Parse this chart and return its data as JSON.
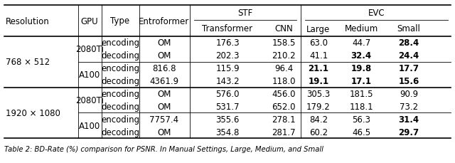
{
  "rows": [
    {
      "type": "encoding",
      "entroformer": "OM",
      "stf_t": "176.3",
      "stf_c": "158.5",
      "large": "63.0",
      "medium": "44.7",
      "small": "28.4",
      "bold": [
        "small"
      ]
    },
    {
      "type": "decoding",
      "entroformer": "OM",
      "stf_t": "202.3",
      "stf_c": "210.2",
      "large": "41.1",
      "medium": "32.4",
      "small": "24.4",
      "bold": [
        "medium",
        "small"
      ]
    },
    {
      "type": "encoding",
      "entroformer": "816.8",
      "stf_t": "115.9",
      "stf_c": "96.4",
      "large": "21.1",
      "medium": "19.8",
      "small": "17.7",
      "bold": [
        "large",
        "medium",
        "small"
      ]
    },
    {
      "type": "decoding",
      "entroformer": "4361.9",
      "stf_t": "143.2",
      "stf_c": "118.0",
      "large": "19.1",
      "medium": "17.1",
      "small": "15.6",
      "bold": [
        "large",
        "medium",
        "small"
      ]
    },
    {
      "type": "encoding",
      "entroformer": "OM",
      "stf_t": "576.0",
      "stf_c": "456.0",
      "large": "305.3",
      "medium": "181.5",
      "small": "90.9",
      "bold": []
    },
    {
      "type": "decoding",
      "entroformer": "OM",
      "stf_t": "531.7",
      "stf_c": "652.0",
      "large": "179.2",
      "medium": "118.1",
      "small": "73.2",
      "bold": []
    },
    {
      "type": "encoding",
      "entroformer": "7757.4",
      "stf_t": "355.6",
      "stf_c": "278.1",
      "large": "84.2",
      "medium": "56.3",
      "small": "31.4",
      "bold": [
        "small"
      ]
    },
    {
      "type": "decoding",
      "entroformer": "OM",
      "stf_t": "354.8",
      "stf_c": "281.7",
      "large": "60.2",
      "medium": "46.5",
      "small": "29.7",
      "bold": [
        "small"
      ]
    }
  ],
  "res_groups": [
    {
      "label": "768 × 512",
      "start": 0,
      "end": 3
    },
    {
      "label": "1920 × 1080",
      "start": 4,
      "end": 7
    }
  ],
  "gpu_groups": [
    {
      "label": "2080Ti",
      "start": 0,
      "end": 1
    },
    {
      "label": "A100",
      "start": 2,
      "end": 3
    },
    {
      "label": "2080Ti",
      "start": 4,
      "end": 5
    },
    {
      "label": "A100",
      "start": 6,
      "end": 7
    }
  ],
  "caption": "Table 2: BD-Rate (%) comparison for PSNR. In Manual Settings, Large, Medium, and Small",
  "background_color": "#ffffff",
  "font_size": 8.5
}
